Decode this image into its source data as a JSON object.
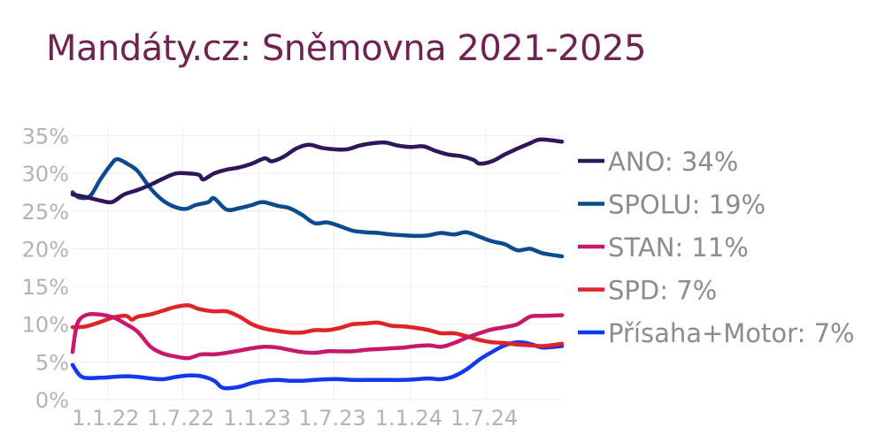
{
  "title": "Mandáty.cz: Sněmovna 2021-2025",
  "chart_data": {
    "type": "line",
    "title": "Mandáty.cz: Sněmovna 2021-2025",
    "xlabel": "",
    "ylabel": "",
    "x_axis": {
      "type": "date",
      "range": [
        "2021-10-09",
        "2024-12-31"
      ],
      "ticks": [
        {
          "date": "2022-01-01",
          "label": "1.1.22"
        },
        {
          "date": "2022-07-01",
          "label": "1.7.22"
        },
        {
          "date": "2023-01-01",
          "label": "1.1.23"
        },
        {
          "date": "2023-07-01",
          "label": "1.7.23"
        },
        {
          "date": "2024-01-01",
          "label": "1.1.24"
        },
        {
          "date": "2024-07-01",
          "label": "1.7.24"
        }
      ]
    },
    "y_axis": {
      "range": [
        0,
        0.36
      ],
      "ticks": [
        {
          "value": 0,
          "label": "0%"
        },
        {
          "value": 0.05,
          "label": "5%"
        },
        {
          "value": 0.1,
          "label": "10%"
        },
        {
          "value": 0.15,
          "label": "15%"
        },
        {
          "value": 0.2,
          "label": "20%"
        },
        {
          "value": 0.25,
          "label": "25%"
        },
        {
          "value": 0.3,
          "label": "30%"
        },
        {
          "value": 0.35,
          "label": "35%"
        }
      ]
    },
    "grid": true,
    "legend_position": "right",
    "series": [
      {
        "name": "ANO",
        "legend": "ANO: 34%",
        "color": "#2e1659",
        "points": [
          [
            "2021-10-09",
            0.272
          ],
          [
            "2021-11-15",
            0.268
          ],
          [
            "2021-12-15",
            0.264
          ],
          [
            "2022-01-12",
            0.262
          ],
          [
            "2022-02-10",
            0.272
          ],
          [
            "2022-03-15",
            0.278
          ],
          [
            "2022-04-15",
            0.285
          ],
          [
            "2022-05-15",
            0.293
          ],
          [
            "2022-06-15",
            0.3
          ],
          [
            "2022-07-15",
            0.3
          ],
          [
            "2022-08-10",
            0.298
          ],
          [
            "2022-08-20",
            0.292
          ],
          [
            "2022-09-15",
            0.3
          ],
          [
            "2022-10-15",
            0.305
          ],
          [
            "2022-11-15",
            0.308
          ],
          [
            "2022-12-15",
            0.313
          ],
          [
            "2023-01-15",
            0.32
          ],
          [
            "2023-02-01",
            0.316
          ],
          [
            "2023-03-01",
            0.322
          ],
          [
            "2023-04-01",
            0.333
          ],
          [
            "2023-05-01",
            0.338
          ],
          [
            "2023-06-01",
            0.334
          ],
          [
            "2023-07-01",
            0.332
          ],
          [
            "2023-08-01",
            0.332
          ],
          [
            "2023-09-01",
            0.337
          ],
          [
            "2023-10-01",
            0.34
          ],
          [
            "2023-11-01",
            0.341
          ],
          [
            "2023-12-01",
            0.337
          ],
          [
            "2024-01-01",
            0.335
          ],
          [
            "2024-02-01",
            0.336
          ],
          [
            "2024-03-01",
            0.33
          ],
          [
            "2024-04-01",
            0.325
          ],
          [
            "2024-05-01",
            0.323
          ],
          [
            "2024-06-01",
            0.318
          ],
          [
            "2024-06-15",
            0.313
          ],
          [
            "2024-07-15",
            0.316
          ],
          [
            "2024-08-15",
            0.325
          ],
          [
            "2024-09-15",
            0.333
          ],
          [
            "2024-10-15",
            0.34
          ],
          [
            "2024-11-10",
            0.345
          ],
          [
            "2024-12-31",
            0.342
          ]
        ]
      },
      {
        "name": "SPOLU",
        "legend": "SPOLU: 19%",
        "color": "#0c4b8e",
        "points": [
          [
            "2021-10-09",
            0.275
          ],
          [
            "2021-10-25",
            0.268
          ],
          [
            "2021-11-20",
            0.27
          ],
          [
            "2021-12-15",
            0.292
          ],
          [
            "2022-01-10",
            0.312
          ],
          [
            "2022-01-25",
            0.319
          ],
          [
            "2022-02-20",
            0.312
          ],
          [
            "2022-03-15",
            0.303
          ],
          [
            "2022-04-15",
            0.28
          ],
          [
            "2022-05-15",
            0.264
          ],
          [
            "2022-06-15",
            0.255
          ],
          [
            "2022-07-10",
            0.253
          ],
          [
            "2022-08-01",
            0.258
          ],
          [
            "2022-09-01",
            0.262
          ],
          [
            "2022-09-15",
            0.267
          ],
          [
            "2022-10-15",
            0.252
          ],
          [
            "2022-11-15",
            0.254
          ],
          [
            "2022-12-15",
            0.258
          ],
          [
            "2023-01-10",
            0.262
          ],
          [
            "2023-02-15",
            0.257
          ],
          [
            "2023-03-15",
            0.254
          ],
          [
            "2023-04-15",
            0.245
          ],
          [
            "2023-05-15",
            0.234
          ],
          [
            "2023-06-15",
            0.235
          ],
          [
            "2023-07-15",
            0.23
          ],
          [
            "2023-08-15",
            0.224
          ],
          [
            "2023-09-15",
            0.222
          ],
          [
            "2023-10-15",
            0.221
          ],
          [
            "2023-11-15",
            0.219
          ],
          [
            "2023-12-15",
            0.218
          ],
          [
            "2024-01-15",
            0.217
          ],
          [
            "2024-02-15",
            0.218
          ],
          [
            "2024-03-15",
            0.221
          ],
          [
            "2024-04-15",
            0.219
          ],
          [
            "2024-05-15",
            0.222
          ],
          [
            "2024-06-15",
            0.216
          ],
          [
            "2024-07-15",
            0.21
          ],
          [
            "2024-08-15",
            0.206
          ],
          [
            "2024-09-15",
            0.198
          ],
          [
            "2024-10-15",
            0.2
          ],
          [
            "2024-11-15",
            0.194
          ],
          [
            "2024-12-31",
            0.19
          ]
        ]
      },
      {
        "name": "STAN",
        "legend": "STAN: 11%",
        "color": "#c8186b",
        "points": [
          [
            "2021-10-09",
            0.063
          ],
          [
            "2021-10-20",
            0.1
          ],
          [
            "2021-11-10",
            0.112
          ],
          [
            "2021-12-10",
            0.113
          ],
          [
            "2022-01-15",
            0.109
          ],
          [
            "2022-02-15",
            0.1
          ],
          [
            "2022-03-15",
            0.09
          ],
          [
            "2022-04-15",
            0.07
          ],
          [
            "2022-05-15",
            0.061
          ],
          [
            "2022-06-15",
            0.057
          ],
          [
            "2022-07-15",
            0.055
          ],
          [
            "2022-08-15",
            0.06
          ],
          [
            "2022-09-15",
            0.06
          ],
          [
            "2022-10-15",
            0.062
          ],
          [
            "2022-11-15",
            0.065
          ],
          [
            "2022-12-15",
            0.068
          ],
          [
            "2023-01-15",
            0.07
          ],
          [
            "2023-02-15",
            0.069
          ],
          [
            "2023-03-15",
            0.066
          ],
          [
            "2023-04-15",
            0.063
          ],
          [
            "2023-05-15",
            0.062
          ],
          [
            "2023-06-15",
            0.064
          ],
          [
            "2023-07-15",
            0.064
          ],
          [
            "2023-08-15",
            0.064
          ],
          [
            "2023-09-15",
            0.066
          ],
          [
            "2023-10-15",
            0.067
          ],
          [
            "2023-11-15",
            0.068
          ],
          [
            "2023-12-15",
            0.069
          ],
          [
            "2024-01-15",
            0.071
          ],
          [
            "2024-02-15",
            0.072
          ],
          [
            "2024-03-15",
            0.07
          ],
          [
            "2024-04-15",
            0.075
          ],
          [
            "2024-05-15",
            0.082
          ],
          [
            "2024-06-15",
            0.088
          ],
          [
            "2024-07-15",
            0.093
          ],
          [
            "2024-08-15",
            0.096
          ],
          [
            "2024-09-15",
            0.1
          ],
          [
            "2024-10-15",
            0.11
          ],
          [
            "2024-11-15",
            0.111
          ],
          [
            "2024-12-31",
            0.112
          ]
        ]
      },
      {
        "name": "SPD",
        "legend": "SPD: 7%",
        "color": "#e02229",
        "points": [
          [
            "2021-10-09",
            0.096
          ],
          [
            "2021-11-10",
            0.097
          ],
          [
            "2021-12-15",
            0.103
          ],
          [
            "2022-01-15",
            0.109
          ],
          [
            "2022-02-15",
            0.111
          ],
          [
            "2022-03-01",
            0.106
          ],
          [
            "2022-03-15",
            0.11
          ],
          [
            "2022-04-15",
            0.113
          ],
          [
            "2022-05-15",
            0.118
          ],
          [
            "2022-06-15",
            0.123
          ],
          [
            "2022-07-15",
            0.125
          ],
          [
            "2022-08-10",
            0.12
          ],
          [
            "2022-09-15",
            0.117
          ],
          [
            "2022-10-15",
            0.117
          ],
          [
            "2022-11-15",
            0.11
          ],
          [
            "2022-12-15",
            0.1
          ],
          [
            "2023-01-15",
            0.094
          ],
          [
            "2023-02-15",
            0.091
          ],
          [
            "2023-03-15",
            0.089
          ],
          [
            "2023-04-15",
            0.089
          ],
          [
            "2023-05-15",
            0.092
          ],
          [
            "2023-06-15",
            0.092
          ],
          [
            "2023-07-15",
            0.095
          ],
          [
            "2023-08-15",
            0.1
          ],
          [
            "2023-09-15",
            0.101
          ],
          [
            "2023-10-15",
            0.102
          ],
          [
            "2023-11-15",
            0.098
          ],
          [
            "2023-12-15",
            0.097
          ],
          [
            "2024-01-15",
            0.095
          ],
          [
            "2024-02-15",
            0.092
          ],
          [
            "2024-03-15",
            0.088
          ],
          [
            "2024-04-15",
            0.088
          ],
          [
            "2024-05-15",
            0.084
          ],
          [
            "2024-06-15",
            0.079
          ],
          [
            "2024-07-15",
            0.076
          ],
          [
            "2024-08-15",
            0.075
          ],
          [
            "2024-09-15",
            0.073
          ],
          [
            "2024-10-15",
            0.072
          ],
          [
            "2024-11-15",
            0.071
          ],
          [
            "2024-12-31",
            0.074
          ]
        ]
      },
      {
        "name": "Přísaha+Motor",
        "legend": "Přísaha+Motor: 7%",
        "color": "#1239f2",
        "points": [
          [
            "2021-10-09",
            0.046
          ],
          [
            "2021-11-01",
            0.03
          ],
          [
            "2021-12-15",
            0.029
          ],
          [
            "2022-01-15",
            0.03
          ],
          [
            "2022-02-15",
            0.031
          ],
          [
            "2022-03-15",
            0.03
          ],
          [
            "2022-04-15",
            0.028
          ],
          [
            "2022-05-15",
            0.027
          ],
          [
            "2022-06-15",
            0.03
          ],
          [
            "2022-07-15",
            0.032
          ],
          [
            "2022-08-15",
            0.031
          ],
          [
            "2022-09-15",
            0.025
          ],
          [
            "2022-10-01",
            0.017
          ],
          [
            "2022-10-15",
            0.015
          ],
          [
            "2022-11-15",
            0.017
          ],
          [
            "2022-12-15",
            0.022
          ],
          [
            "2023-01-15",
            0.025
          ],
          [
            "2023-02-15",
            0.026
          ],
          [
            "2023-03-15",
            0.025
          ],
          [
            "2023-04-15",
            0.025
          ],
          [
            "2023-05-15",
            0.026
          ],
          [
            "2023-06-15",
            0.027
          ],
          [
            "2023-07-15",
            0.027
          ],
          [
            "2023-08-15",
            0.026
          ],
          [
            "2023-09-15",
            0.026
          ],
          [
            "2023-10-15",
            0.026
          ],
          [
            "2023-11-15",
            0.026
          ],
          [
            "2023-12-15",
            0.026
          ],
          [
            "2024-01-15",
            0.027
          ],
          [
            "2024-02-15",
            0.028
          ],
          [
            "2024-03-15",
            0.027
          ],
          [
            "2024-04-15",
            0.031
          ],
          [
            "2024-05-15",
            0.04
          ],
          [
            "2024-06-15",
            0.053
          ],
          [
            "2024-07-15",
            0.063
          ],
          [
            "2024-08-15",
            0.072
          ],
          [
            "2024-09-15",
            0.076
          ],
          [
            "2024-10-15",
            0.074
          ],
          [
            "2024-11-15",
            0.069
          ],
          [
            "2024-12-31",
            0.071
          ]
        ]
      }
    ]
  }
}
